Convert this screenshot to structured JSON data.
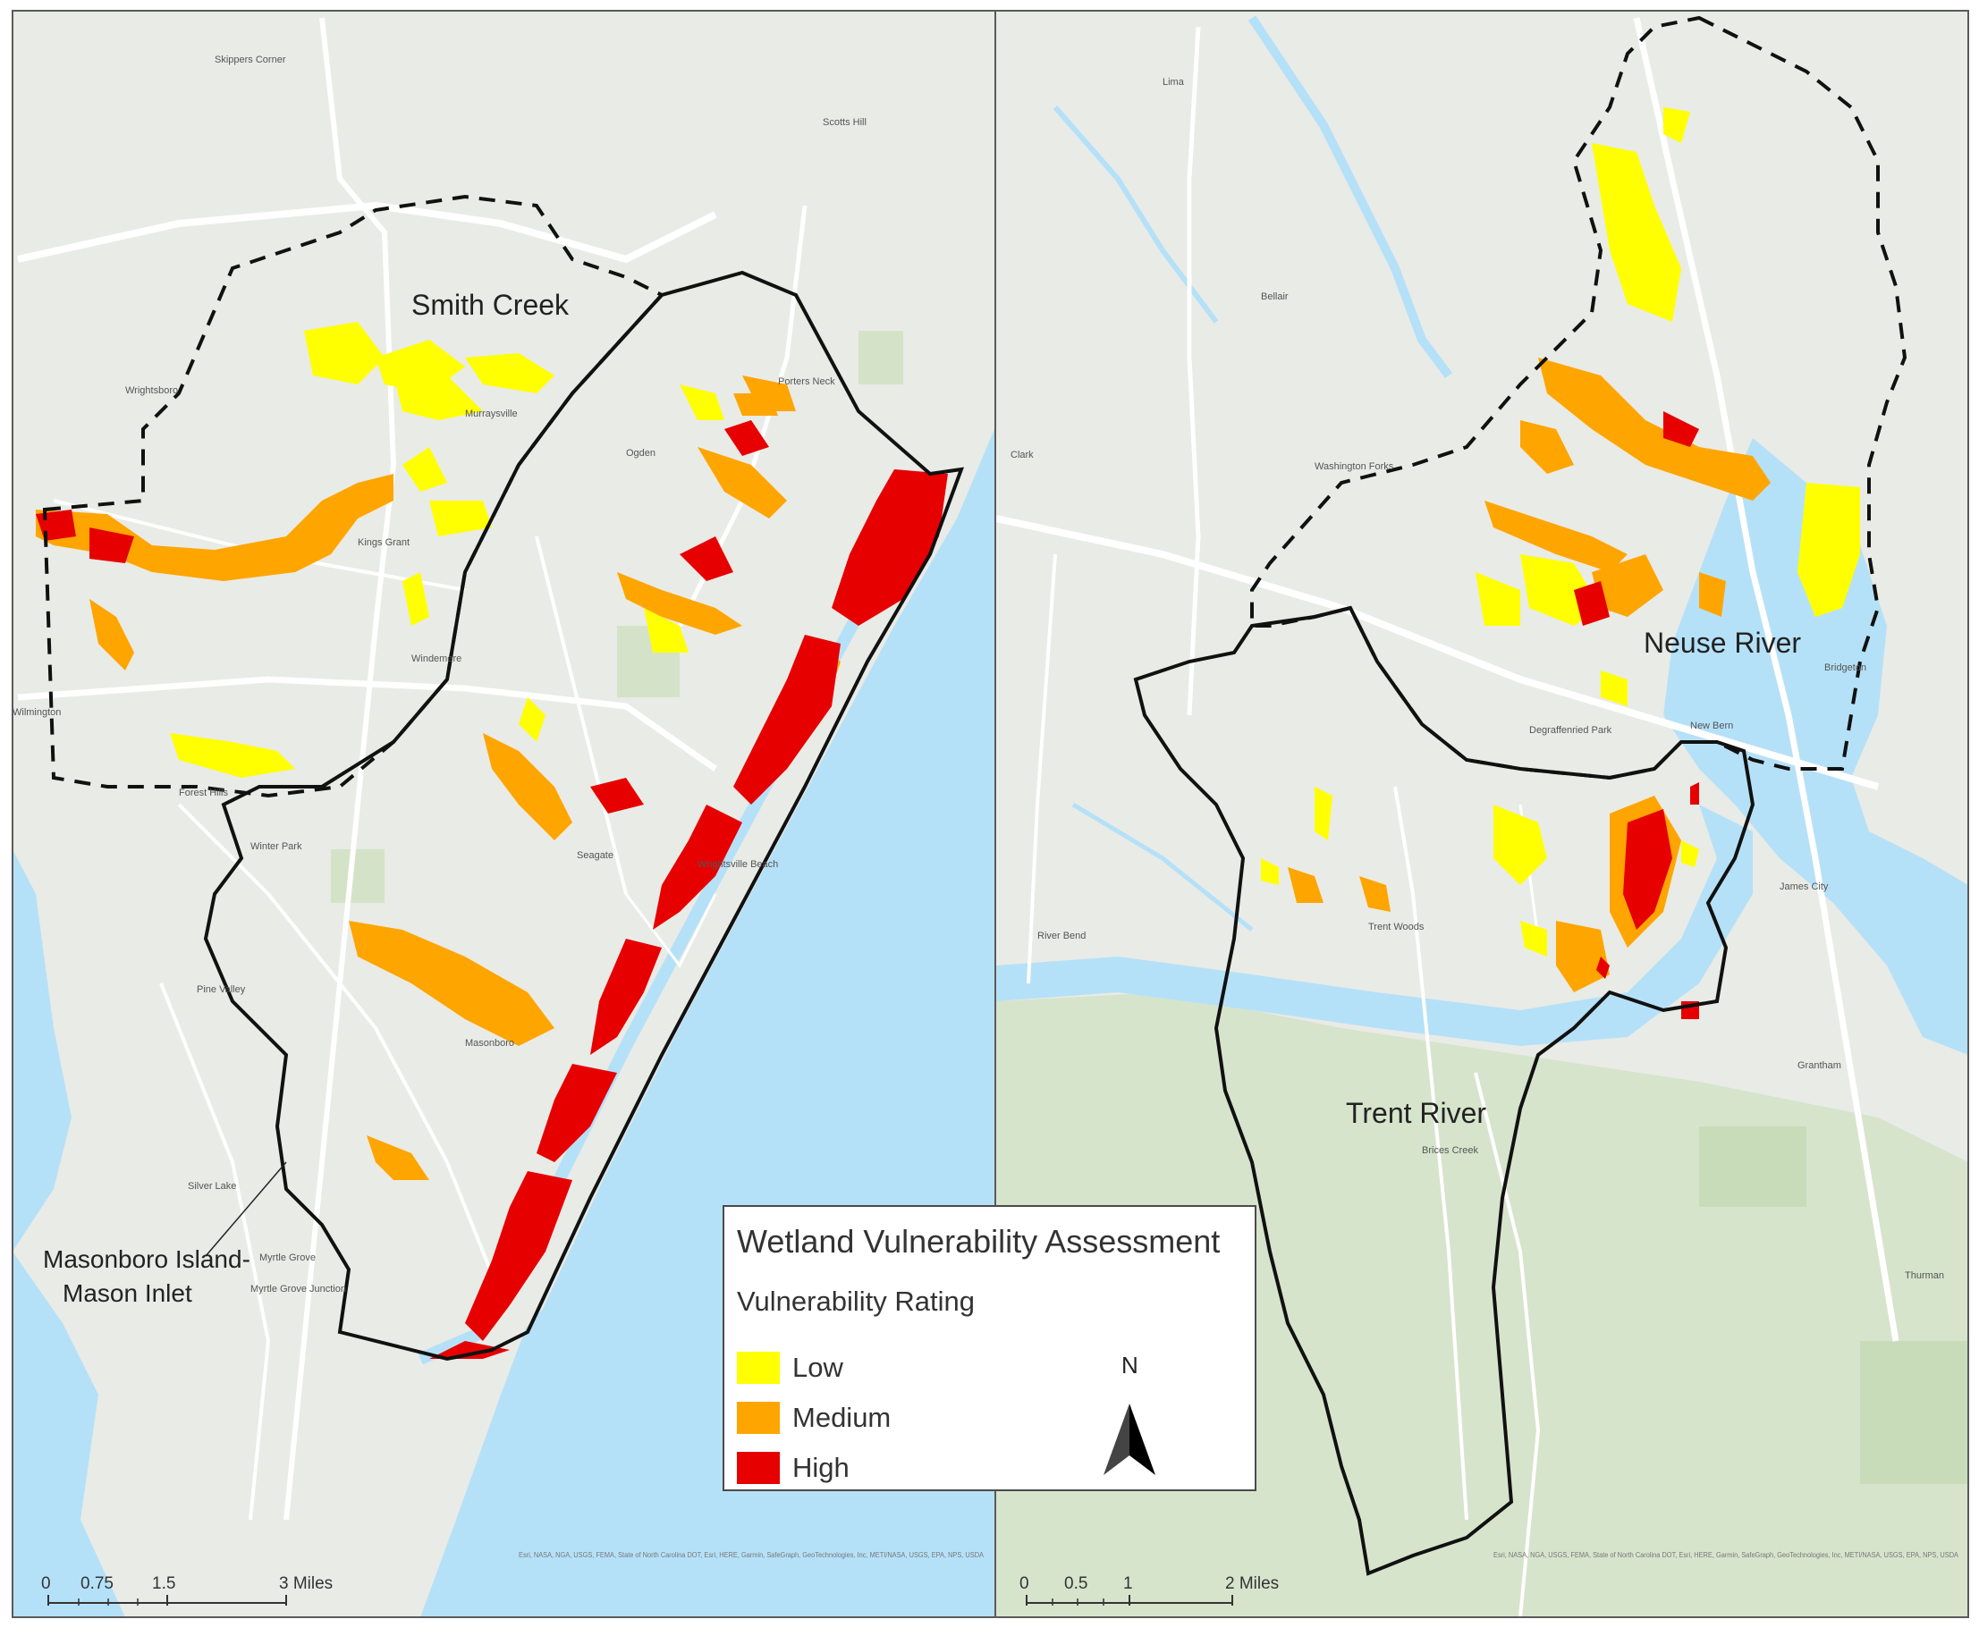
{
  "figure": {
    "title": "Wetland Vulnerability Assessment",
    "legend": {
      "subtitle": "Vulnerability Rating",
      "items": [
        {
          "label": "Low",
          "color": "#ffff00"
        },
        {
          "label": "Medium",
          "color": "#ffa500"
        },
        {
          "label": "High",
          "color": "#e60000"
        }
      ],
      "north_label": "N"
    }
  },
  "left_panel": {
    "watershed_labels": [
      "Smith Creek",
      "Masonboro Island-",
      "Mason Inlet"
    ],
    "place_labels": [
      "Skippers Corner",
      "Scotts Hill",
      "Wrightsboro",
      "Murraysville",
      "Ogden",
      "Porters Neck",
      "Kings Grant",
      "Windemere",
      "Wilmington",
      "Forest Hills",
      "Winter Park",
      "Seagate",
      "Wrightsville Beach",
      "Pine Valley",
      "Masonboro",
      "Silver Lake",
      "Myrtle Grove",
      "Myrtle Grove Junction"
    ],
    "scale_labels": [
      "0",
      "0.75",
      "1.5",
      "3 Miles"
    ],
    "attribution": "Esri, NASA, NGA, USGS, FEMA, State of North Carolina DOT, Esri, HERE, Garmin, SafeGraph, GeoTechnologies, Inc, METI/NASA, USGS, EPA, NPS, USDA"
  },
  "right_panel": {
    "watershed_labels": [
      "Neuse River",
      "Trent River"
    ],
    "place_labels": [
      "Lima",
      "Bellair",
      "Clark",
      "Washington Forks",
      "Bridgeton",
      "New Bern",
      "Degraffenried Park",
      "James City",
      "Trent Woods",
      "River Bend",
      "Brices Creek",
      "Grantham",
      "Thurman"
    ],
    "scale_labels": [
      "0",
      "0.5",
      "1",
      "2 Miles"
    ],
    "attribution": "Esri, NASA, NGA, USGS, FEMA, State of North Carolina DOT, Esri, HERE, Garmin, SafeGraph, GeoTechnologies, Inc, METI/NASA, USGS, EPA, NPS, USDA"
  }
}
